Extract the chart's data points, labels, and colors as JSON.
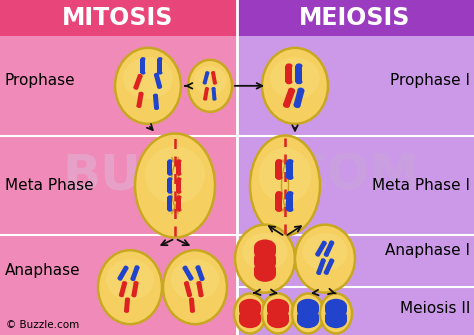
{
  "title_mitosis": "MITOSIS",
  "title_meiosis": "MEIOSIS",
  "header_bg_mitosis": "#e8457a",
  "header_bg_meiosis": "#9b3bbf",
  "bg_mitosis": "#f08ab8",
  "bg_meiosis": "#cc99e8",
  "cell_fill": "#f5d060",
  "cell_edge": "#c8a820",
  "cell_edge2": "#b89018",
  "arrow_color": "#111111",
  "red_chrom": "#dd2222",
  "blue_chrom": "#2244cc",
  "spindle_color": "#c8a020",
  "watermark_color": "#e0b8d8",
  "copyright": "© Buzzle.com",
  "figsize": [
    4.74,
    3.35
  ],
  "dpi": 100
}
